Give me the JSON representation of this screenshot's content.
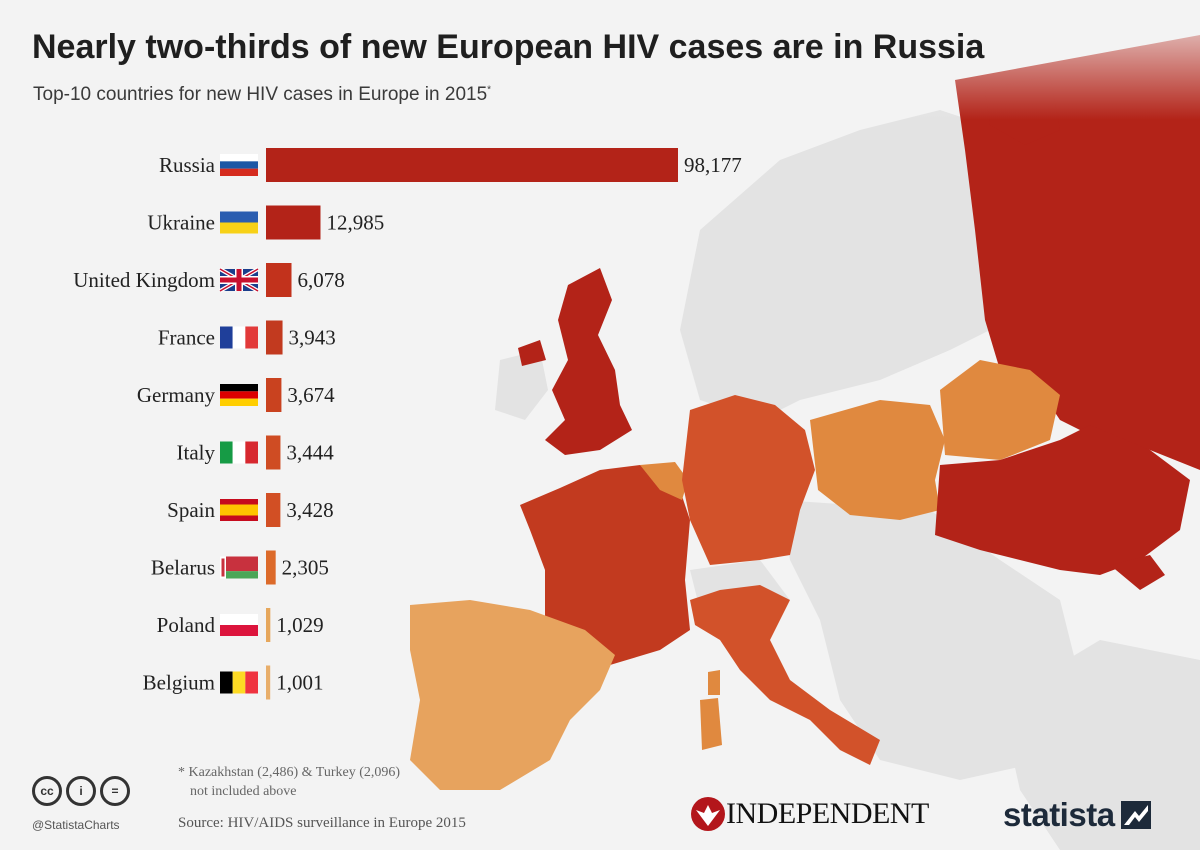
{
  "header": {
    "title": "Nearly two-thirds of new European HIV cases are in Russia",
    "subtitle": "Top-10 countries for new HIV cases in Europe in 2015",
    "subtitle_mark": "*"
  },
  "chart_data": {
    "type": "bar",
    "orientation": "horizontal",
    "title": "Nearly two-thirds of new European HIV cases are in Russia",
    "subtitle": "Top-10 countries for new HIV cases in Europe in 2015*",
    "categories": [
      "Russia",
      "Ukraine",
      "United Kingdom",
      "France",
      "Germany",
      "Italy",
      "Spain",
      "Belarus",
      "Poland",
      "Belgium"
    ],
    "values": [
      98177,
      12985,
      6078,
      3943,
      3674,
      3444,
      3428,
      2305,
      1029,
      1001
    ],
    "value_labels": [
      "98,177",
      "12,985",
      "6,078",
      "3,943",
      "3,674",
      "3,444",
      "3,428",
      "2,305",
      "1,029",
      "1,001"
    ],
    "bar_colors": [
      "#b32318",
      "#b32318",
      "#c2321c",
      "#c23a1f",
      "#c9421f",
      "#cf4c23",
      "#d24f24",
      "#dc6a2a",
      "#e6a75c",
      "#e8ae6a"
    ],
    "grid": false,
    "legend": "none",
    "xlim": [
      0,
      98177
    ]
  },
  "map_colors": {
    "background": "#f3f3f3",
    "land": "#e3e3e3",
    "dark_red": "#b32318",
    "red": "#c23a1f",
    "orange_red": "#d2522a",
    "orange": "#e0893f",
    "light_orange": "#e7a35e"
  },
  "footer": {
    "footnote_line1": "* Kazakhstan (2,486) & Turkey (2,096)",
    "footnote_line2": "not included above",
    "source": "Source: HIV/AIDS surveillance in Europe 2015",
    "cc_handle": "@StatistaCharts",
    "cc_icons": [
      "cc-icon",
      "by-icon",
      "nd-icon"
    ],
    "cc_symbols": [
      "cc",
      "i",
      "="
    ],
    "independent": "INDEPENDENT",
    "statista": "statista"
  }
}
